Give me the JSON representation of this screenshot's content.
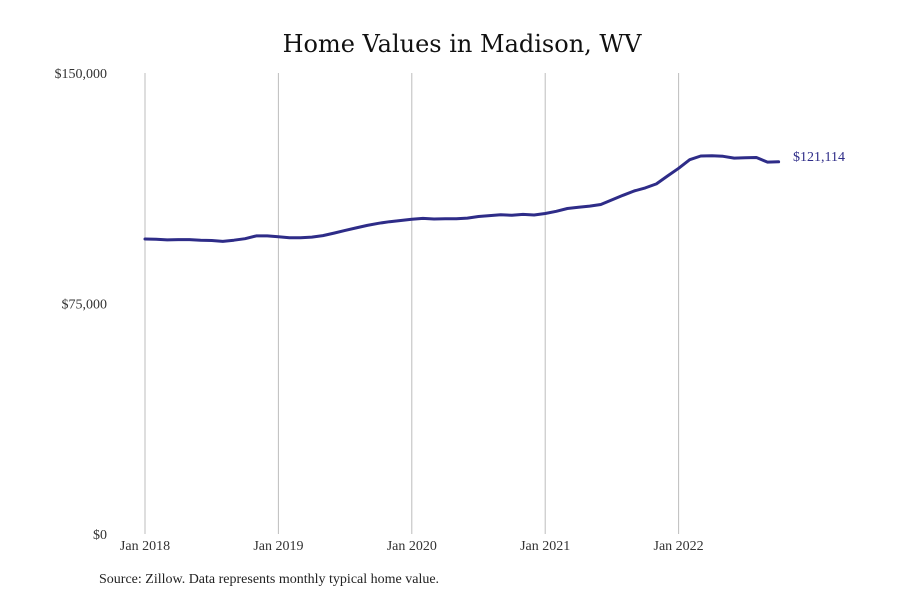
{
  "chart_data": {
    "type": "line",
    "title": "Home Values in Madison, WV",
    "xlabel": "",
    "ylabel": "",
    "ylim": [
      0,
      150000
    ],
    "yticks": [
      {
        "value": 0,
        "label": "$0"
      },
      {
        "value": 75000,
        "label": "$75,000"
      },
      {
        "value": 150000,
        "label": "$150,000"
      }
    ],
    "xlim": [
      "2018-01",
      "2022-12"
    ],
    "xticks": [
      {
        "value": "2018-01",
        "label": "Jan 2018"
      },
      {
        "value": "2019-01",
        "label": "Jan 2019"
      },
      {
        "value": "2020-01",
        "label": "Jan 2020"
      },
      {
        "value": "2021-01",
        "label": "Jan 2021"
      },
      {
        "value": "2022-01",
        "label": "Jan 2022"
      }
    ],
    "grid": "vertical",
    "line_color": "#2e2c88",
    "end_label": "$121,114",
    "series": [
      {
        "x": [
          "2018-01",
          "2018-02",
          "2018-03",
          "2018-04",
          "2018-05",
          "2018-06",
          "2018-07",
          "2018-08",
          "2018-09",
          "2018-10",
          "2018-11",
          "2018-12",
          "2019-01",
          "2019-02",
          "2019-03",
          "2019-04",
          "2019-05",
          "2019-06",
          "2019-07",
          "2019-08",
          "2019-09",
          "2019-10",
          "2019-11",
          "2019-12",
          "2020-01",
          "2020-02",
          "2020-03",
          "2020-04",
          "2020-05",
          "2020-06",
          "2020-07",
          "2020-08",
          "2020-09",
          "2020-10",
          "2020-11",
          "2020-12",
          "2021-01",
          "2021-02",
          "2021-03",
          "2021-04",
          "2021-05",
          "2021-06",
          "2021-07",
          "2021-08",
          "2021-09",
          "2021-10",
          "2021-11",
          "2021-12",
          "2022-01",
          "2022-02",
          "2022-03",
          "2022-04",
          "2022-05",
          "2022-06",
          "2022-07",
          "2022-08",
          "2022-09",
          "2022-10"
        ],
        "values": [
          96000,
          95900,
          95700,
          95800,
          95800,
          95600,
          95500,
          95200,
          95600,
          96100,
          97000,
          97000,
          96700,
          96400,
          96400,
          96600,
          97100,
          97900,
          98800,
          99600,
          100400,
          101100,
          101600,
          102000,
          102400,
          102700,
          102500,
          102600,
          102600,
          102800,
          103300,
          103600,
          103900,
          103700,
          104000,
          103800,
          104300,
          105000,
          105900,
          106300,
          106700,
          107200,
          108700,
          110200,
          111600,
          112600,
          113900,
          116500,
          119000,
          121800,
          123000,
          123100,
          122900,
          122300,
          122400,
          122500,
          121000,
          121114
        ]
      }
    ]
  },
  "footer": {
    "source": "Source: Zillow. Data represents monthly typical home value."
  }
}
